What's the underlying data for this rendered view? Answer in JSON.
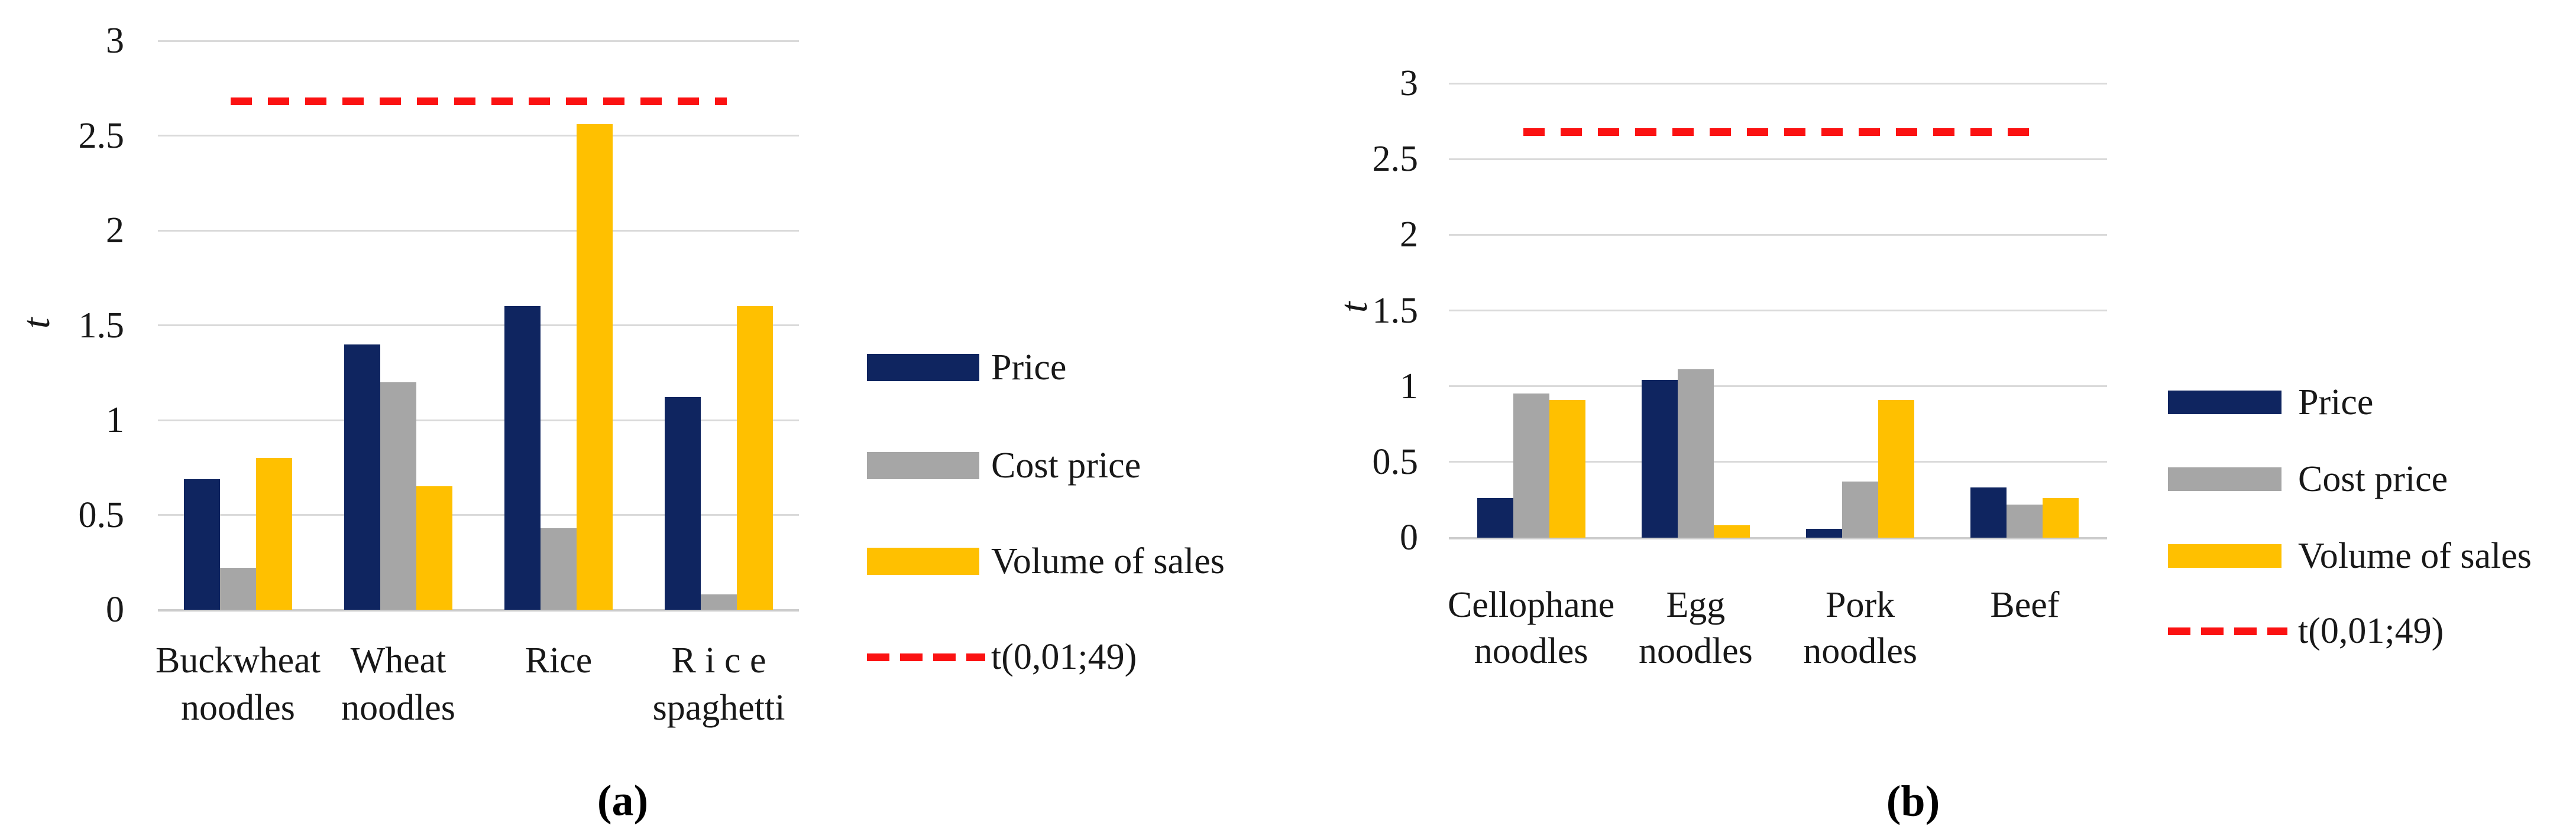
{
  "figure": {
    "background": "#ffffff",
    "text_color": "#181818",
    "gridline_color": "#dadada"
  },
  "chart_data": [
    {
      "type": "bar",
      "panel_caption": "(a)",
      "ylabel": "t",
      "ylim": [
        0,
        3
      ],
      "yticks": [
        0,
        0.5,
        1,
        1.5,
        2,
        2.5,
        3
      ],
      "ytick_labels": [
        "0",
        "0.5",
        "1",
        "1.5",
        "2",
        "2.5",
        "3"
      ],
      "grid": true,
      "legend_position": "right",
      "categories": [
        "Buckwheat noodles",
        "Wheat noodles",
        "Rice",
        "R i c e spaghetti"
      ],
      "category_lines": [
        [
          "Buckwheat",
          "noodles"
        ],
        [
          "Wheat",
          "noodles"
        ],
        [
          "Rice"
        ],
        [
          "R i c e",
          "spaghetti"
        ]
      ],
      "series": [
        {
          "name": "Price",
          "color": "#0f2560",
          "values": [
            0.69,
            1.4,
            1.6,
            1.12
          ]
        },
        {
          "name": "Cost price",
          "color": "#a6a6a6",
          "values": [
            0.22,
            1.2,
            0.43,
            0.08
          ]
        },
        {
          "name": "Volume of sales",
          "color": "#ffc000",
          "values": [
            0.8,
            0.65,
            2.56,
            1.6
          ]
        }
      ],
      "threshold_line": {
        "name": "t(0,01;49)",
        "value": 2.68,
        "color": "#fb1212",
        "style": "dashed"
      }
    },
    {
      "type": "bar",
      "panel_caption": "(b)",
      "ylabel": "t",
      "ylim": [
        0,
        3
      ],
      "yticks": [
        0,
        0.5,
        1,
        1.5,
        2,
        2.5,
        3
      ],
      "ytick_labels": [
        "0",
        "0.5",
        "1",
        "1.5",
        "2",
        "2.5",
        "3"
      ],
      "grid": true,
      "legend_position": "right",
      "categories": [
        "Cellophane noodles",
        "Egg noodles",
        "Pork noodles",
        "Beef"
      ],
      "category_lines": [
        [
          "Cellophane",
          "noodles"
        ],
        [
          "Egg",
          "noodles"
        ],
        [
          "Pork",
          "noodles"
        ],
        [
          "Beef"
        ]
      ],
      "series": [
        {
          "name": "Price",
          "color": "#0f2560",
          "values": [
            0.26,
            1.04,
            0.06,
            0.33
          ]
        },
        {
          "name": "Cost price",
          "color": "#a6a6a6",
          "values": [
            0.95,
            1.11,
            0.37,
            0.22
          ]
        },
        {
          "name": "Volume of sales",
          "color": "#ffc000",
          "values": [
            0.91,
            0.08,
            0.91,
            0.26
          ]
        }
      ],
      "threshold_line": {
        "name": "t(0,01;49)",
        "value": 2.68,
        "color": "#fb1212",
        "style": "dashed"
      }
    }
  ]
}
